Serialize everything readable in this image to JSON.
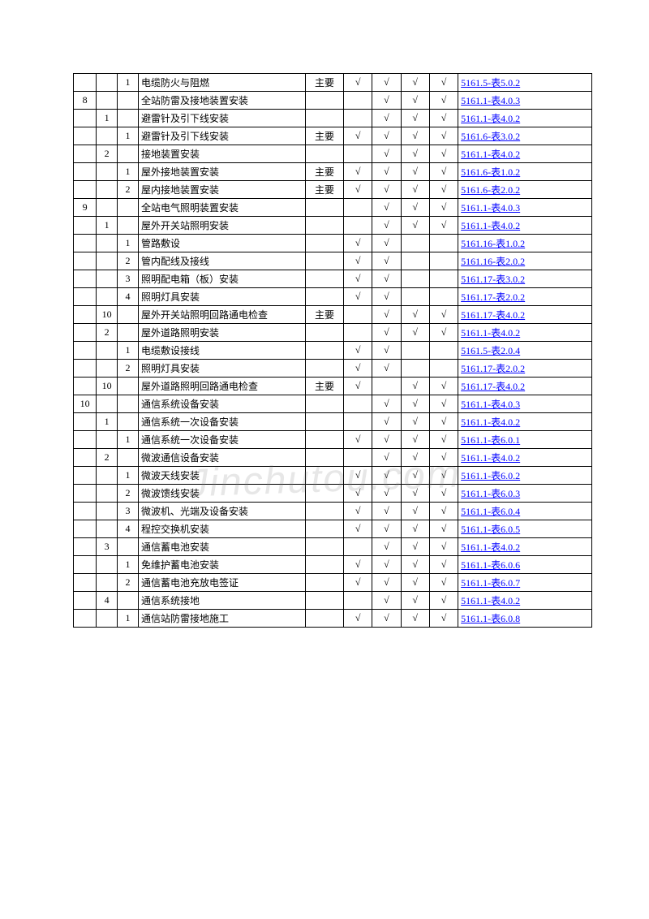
{
  "watermark": "Jinchutou.com",
  "check": "√",
  "priority_major": "主要",
  "table": {
    "rows": [
      {
        "c1": "",
        "c2": "",
        "c3": "1",
        "name": "电缆防火与阻燃",
        "prio": "主要",
        "m1": "√",
        "m2": "√",
        "m3": "√",
        "m4": "√",
        "ref": "5161.5-表5.0.2"
      },
      {
        "c1": "8",
        "c2": "",
        "c3": "",
        "name": "全站防雷及接地装置安装",
        "prio": "",
        "m1": "",
        "m2": "√",
        "m3": "√",
        "m4": "√",
        "ref": "5161.1-表4.0.3"
      },
      {
        "c1": "",
        "c2": "1",
        "c3": "",
        "name": "避雷针及引下线安装",
        "prio": "",
        "m1": "",
        "m2": "√",
        "m3": "√",
        "m4": "√",
        "ref": "5161.1-表4.0.2"
      },
      {
        "c1": "",
        "c2": "",
        "c3": "1",
        "name": "避雷针及引下线安装",
        "prio": "主要",
        "m1": "√",
        "m2": "√",
        "m3": "√",
        "m4": "√",
        "ref": "5161.6-表3.0.2"
      },
      {
        "c1": "",
        "c2": "2",
        "c3": "",
        "name": "接地装置安装",
        "prio": "",
        "m1": "",
        "m2": "√",
        "m3": "√",
        "m4": "√",
        "ref": "5161.1-表4.0.2"
      },
      {
        "c1": "",
        "c2": "",
        "c3": "1",
        "name": "屋外接地装置安装",
        "prio": "主要",
        "m1": "√",
        "m2": "√",
        "m3": "√",
        "m4": "√",
        "ref": "5161.6-表1.0.2"
      },
      {
        "c1": "",
        "c2": "",
        "c3": "2",
        "name": "屋内接地装置安装",
        "prio": "主要",
        "m1": "√",
        "m2": "√",
        "m3": "√",
        "m4": "√",
        "ref": "5161.6-表2.0.2"
      },
      {
        "c1": "9",
        "c2": "",
        "c3": "",
        "name": "全站电气照明装置安装",
        "prio": "",
        "m1": "",
        "m2": "√",
        "m3": "√",
        "m4": "√",
        "ref": "5161.1-表4.0.3"
      },
      {
        "c1": "",
        "c2": "1",
        "c3": "",
        "name": "屋外开关站照明安装",
        "prio": "",
        "m1": "",
        "m2": "√",
        "m3": "√",
        "m4": "√",
        "ref": "5161.1-表4.0.2"
      },
      {
        "c1": "",
        "c2": "",
        "c3": "1",
        "name": "管路敷设",
        "prio": "",
        "m1": "√",
        "m2": "√",
        "m3": "",
        "m4": "",
        "ref": "5161.16-表1.0.2"
      },
      {
        "c1": "",
        "c2": "",
        "c3": "2",
        "name": "管内配线及接线",
        "prio": "",
        "m1": "√",
        "m2": "√",
        "m3": "",
        "m4": "",
        "ref": "5161.16-表2.0.2"
      },
      {
        "c1": "",
        "c2": "",
        "c3": "3",
        "name": "照明配电箱（板）安装",
        "prio": "",
        "m1": "√",
        "m2": "√",
        "m3": "",
        "m4": "",
        "ref": "5161.17-表3.0.2"
      },
      {
        "c1": "",
        "c2": "",
        "c3": "4",
        "name": "照明灯具安装",
        "prio": "",
        "m1": "√",
        "m2": "√",
        "m3": "",
        "m4": "",
        "ref": "5161.17-表2.0.2"
      },
      {
        "c1": "",
        "c2": "10",
        "c3": "",
        "name": "屋外开关站照明回路通电检查",
        "prio": "主要",
        "m1": "",
        "m2": "√",
        "m3": "√",
        "m4": "√",
        "ref": "5161.17-表4.0.2"
      },
      {
        "c1": "",
        "c2": "2",
        "c3": "",
        "name": "屋外道路照明安装",
        "prio": "",
        "m1": "",
        "m2": "√",
        "m3": "√",
        "m4": "√",
        "ref": "5161.1-表4.0.2"
      },
      {
        "c1": "",
        "c2": "",
        "c3": "1",
        "name": "电缆敷设接线",
        "prio": "",
        "m1": "√",
        "m2": "√",
        "m3": "",
        "m4": "",
        "ref": "5161.5-表2.0.4"
      },
      {
        "c1": "",
        "c2": "",
        "c3": "2",
        "name": "照明灯具安装",
        "prio": "",
        "m1": "√",
        "m2": "√",
        "m3": "",
        "m4": "",
        "ref": "5161.17-表2.0.2"
      },
      {
        "c1": "",
        "c2": "10",
        "c3": "",
        "name": "屋外道路照明回路通电检查",
        "prio": "主要",
        "m1": "√",
        "m2": "",
        "m3": "√",
        "m4": "√",
        "ref": "5161.17-表4.0.2"
      },
      {
        "c1": "10",
        "c2": "",
        "c3": "",
        "name": "通信系统设备安装",
        "prio": "",
        "m1": "",
        "m2": "√",
        "m3": "√",
        "m4": "√",
        "ref": "5161.1-表4.0.3"
      },
      {
        "c1": "",
        "c2": "1",
        "c3": "",
        "name": "通信系统一次设备安装",
        "prio": "",
        "m1": "",
        "m2": "√",
        "m3": "√",
        "m4": "√",
        "ref": "5161.1-表4.0.2"
      },
      {
        "c1": "",
        "c2": "",
        "c3": "1",
        "name": "通信系统一次设备安装",
        "prio": "",
        "m1": "√",
        "m2": "√",
        "m3": "√",
        "m4": "√",
        "ref": "5161.1-表6.0.1"
      },
      {
        "c1": "",
        "c2": "2",
        "c3": "",
        "name": "微波通信设备安装",
        "prio": "",
        "m1": "",
        "m2": "√",
        "m3": "√",
        "m4": "√",
        "ref": "5161.1-表4.0.2"
      },
      {
        "c1": "",
        "c2": "",
        "c3": "1",
        "name": "微波天线安装",
        "prio": "",
        "m1": "√",
        "m2": "√",
        "m3": "√",
        "m4": "√",
        "ref": "5161.1-表6.0.2"
      },
      {
        "c1": "",
        "c2": "",
        "c3": "2",
        "name": "微波馈线安装",
        "prio": "",
        "m1": "√",
        "m2": "√",
        "m3": "√",
        "m4": "√",
        "ref": "5161.1-表6.0.3"
      },
      {
        "c1": "",
        "c2": "",
        "c3": "3",
        "name": "微波机、光端及设备安装",
        "prio": "",
        "m1": "√",
        "m2": "√",
        "m3": "√",
        "m4": "√",
        "ref": "5161.1-表6.0.4"
      },
      {
        "c1": "",
        "c2": "",
        "c3": "4",
        "name": "程控交换机安装",
        "prio": "",
        "m1": "√",
        "m2": "√",
        "m3": "√",
        "m4": "√",
        "ref": "5161.1-表6.0.5"
      },
      {
        "c1": "",
        "c2": "3",
        "c3": "",
        "name": "通信蓄电池安装",
        "prio": "",
        "m1": "",
        "m2": "√",
        "m3": "√",
        "m4": "√",
        "ref": "5161.1-表4.0.2"
      },
      {
        "c1": "",
        "c2": "",
        "c3": "1",
        "name": "免维护蓄电池安装",
        "prio": "",
        "m1": "√",
        "m2": "√",
        "m3": "√",
        "m4": "√",
        "ref": "5161.1-表6.0.6"
      },
      {
        "c1": "",
        "c2": "",
        "c3": "2",
        "name": "通信蓄电池充放电签证",
        "prio": "",
        "m1": "√",
        "m2": "√",
        "m3": "√",
        "m4": "√",
        "ref": "5161.1-表6.0.7"
      },
      {
        "c1": "",
        "c2": "4",
        "c3": "",
        "name": "通信系统接地",
        "prio": "",
        "m1": "",
        "m2": "√",
        "m3": "√",
        "m4": "√",
        "ref": "5161.1-表4.0.2"
      },
      {
        "c1": "",
        "c2": "",
        "c3": "1",
        "name": "通信站防雷接地施工",
        "prio": "",
        "m1": "√",
        "m2": "√",
        "m3": "√",
        "m4": "√",
        "ref": "5161.1-表6.0.8"
      }
    ]
  }
}
